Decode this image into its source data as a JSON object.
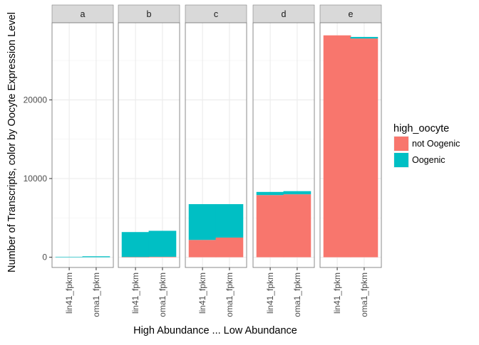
{
  "chart_data": {
    "type": "bar",
    "stacked": true,
    "faceted": true,
    "xlabel": "High Abundance  ... Low Abundance",
    "ylabel": "Number of Transcripts, color by Oocyte Expression Level",
    "ylim": [
      -1300,
      29800
    ],
    "yticks": [
      0,
      10000,
      20000
    ],
    "ytick_labels": [
      "0",
      "10000",
      "20000"
    ],
    "grid": true,
    "categories": [
      "lin41_fpkm",
      "oma1_fpkm"
    ],
    "legend": {
      "title": "high_oocyte",
      "position": "right",
      "entries": [
        {
          "key": "not_oogenic",
          "label": "not Oogenic",
          "color": "#F8766D"
        },
        {
          "key": "oogenic",
          "label": "Oogenic",
          "color": "#00BFC4"
        }
      ]
    },
    "panels": [
      {
        "label": "a",
        "bars": [
          {
            "category": "lin41_fpkm",
            "not_oogenic": 0,
            "oogenic": 60
          },
          {
            "category": "oma1_fpkm",
            "not_oogenic": 0,
            "oogenic": 120
          }
        ]
      },
      {
        "label": "b",
        "bars": [
          {
            "category": "lin41_fpkm",
            "not_oogenic": 30,
            "oogenic": 3170
          },
          {
            "category": "oma1_fpkm",
            "not_oogenic": 60,
            "oogenic": 3300
          }
        ]
      },
      {
        "label": "c",
        "bars": [
          {
            "category": "lin41_fpkm",
            "not_oogenic": 2200,
            "oogenic": 4550
          },
          {
            "category": "oma1_fpkm",
            "not_oogenic": 2500,
            "oogenic": 4250
          }
        ]
      },
      {
        "label": "d",
        "bars": [
          {
            "category": "lin41_fpkm",
            "not_oogenic": 7900,
            "oogenic": 400
          },
          {
            "category": "oma1_fpkm",
            "not_oogenic": 8000,
            "oogenic": 400
          }
        ]
      },
      {
        "label": "e",
        "bars": [
          {
            "category": "lin41_fpkm",
            "not_oogenic": 28200,
            "oogenic": 0
          },
          {
            "category": "oma1_fpkm",
            "not_oogenic": 27800,
            "oogenic": 200
          }
        ]
      }
    ]
  }
}
